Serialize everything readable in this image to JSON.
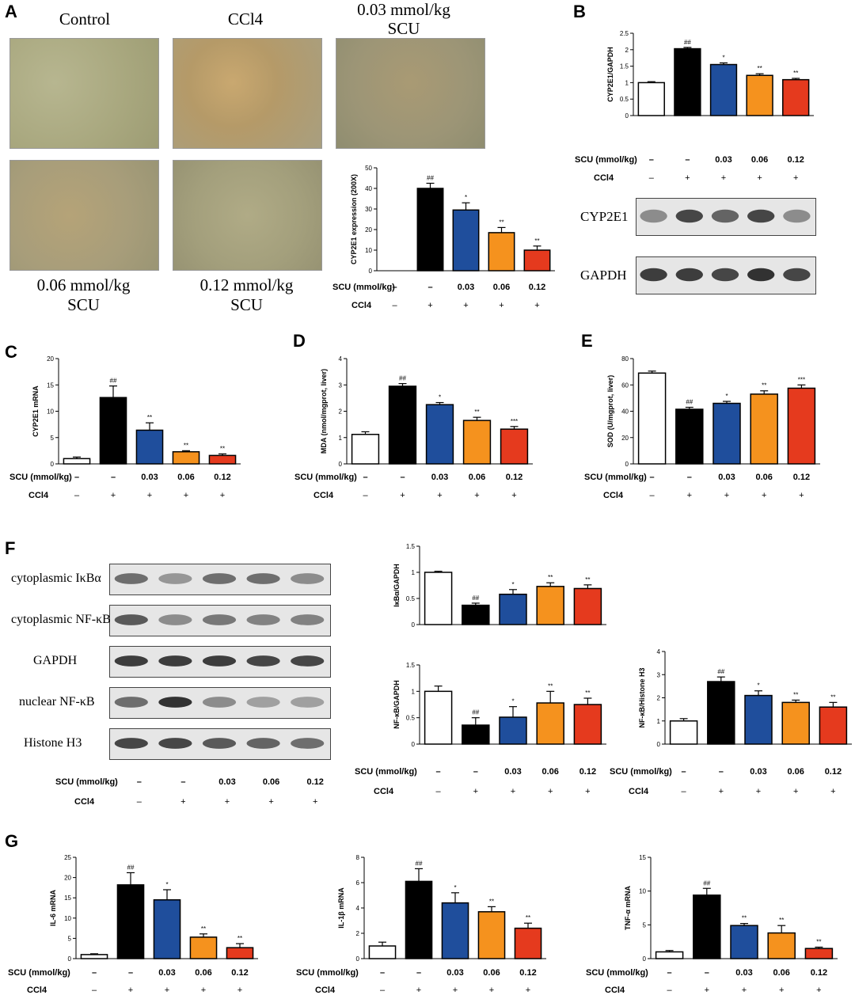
{
  "panel_labels": {
    "A": "A",
    "B": "B",
    "C": "C",
    "D": "D",
    "E": "E",
    "F": "F",
    "G": "G"
  },
  "groups": {
    "scu": [
      "–",
      "–",
      "0.03",
      "0.06",
      "0.12"
    ],
    "ccl4": [
      "–",
      "+",
      "+",
      "+",
      "+"
    ],
    "scu_label": "SCU (mmol/kg)",
    "ccl4_label": "CCl4"
  },
  "colors": {
    "control": "#ffffff",
    "model": "#000000",
    "low": "#1f4e9c",
    "mid": "#f5921e",
    "high": "#e53a1e"
  },
  "panel_a": {
    "micro_titles": [
      "Control",
      "CCl4",
      "0.03 mmol/kg",
      "SCU",
      "0.06 mmol/kg",
      "SCU",
      "0.12 mmol/kg",
      "SCU"
    ]
  },
  "panel_b": {
    "blot_labels": [
      "CYP2E1",
      "GAPDH"
    ]
  },
  "panel_f": {
    "blot_labels": [
      "cytoplasmic IκBα",
      "cytoplasmic NF-κB",
      "GAPDH",
      "nuclear NF-κB",
      "Histone H3"
    ]
  },
  "chart_data": [
    {
      "id": "a",
      "type": "bar",
      "ylabel": "CYP2E1 expression (200X)",
      "ylim": [
        0,
        50
      ],
      "ticks": [
        0,
        10,
        20,
        30,
        40,
        50
      ],
      "values": [
        0,
        40,
        29.5,
        18.5,
        10
      ],
      "errors": [
        0,
        2.5,
        3.5,
        2.5,
        2
      ],
      "marks": [
        "",
        "##",
        "*",
        "**",
        "**"
      ]
    },
    {
      "id": "b",
      "type": "bar",
      "ylabel": "CYP2E1/GAPDH",
      "ylim": [
        0,
        2.5
      ],
      "ticks": [
        0.0,
        0.5,
        1.0,
        1.5,
        2.0,
        2.5
      ],
      "values": [
        1.0,
        2.03,
        1.55,
        1.22,
        1.09
      ],
      "errors": [
        0.03,
        0.04,
        0.05,
        0.05,
        0.04
      ],
      "marks": [
        "",
        "##",
        "*",
        "**",
        "**"
      ]
    },
    {
      "id": "c",
      "type": "bar",
      "ylabel": "CYP2E1 mRNA",
      "ylim": [
        0,
        20
      ],
      "ticks": [
        0,
        5,
        10,
        15,
        20
      ],
      "values": [
        1.0,
        12.6,
        6.4,
        2.3,
        1.6
      ],
      "errors": [
        0.3,
        2.2,
        1.4,
        0.2,
        0.3
      ],
      "marks": [
        "",
        "##",
        "**",
        "**",
        "**"
      ]
    },
    {
      "id": "d",
      "type": "bar",
      "ylabel": "MDA (nmol/mgprot, liver)",
      "ylim": [
        0,
        4
      ],
      "ticks": [
        0,
        1,
        2,
        3,
        4
      ],
      "values": [
        1.12,
        2.95,
        2.25,
        1.65,
        1.32
      ],
      "errors": [
        0.1,
        0.1,
        0.08,
        0.12,
        0.1
      ],
      "marks": [
        "",
        "##",
        "*",
        "**",
        "***"
      ]
    },
    {
      "id": "e",
      "type": "bar",
      "ylabel": "SOD (U/mgprot, liver)",
      "ylim": [
        0,
        80
      ],
      "ticks": [
        0,
        20,
        40,
        60,
        80
      ],
      "values": [
        69,
        41.5,
        46,
        53,
        57.5
      ],
      "errors": [
        1.5,
        1.5,
        1.5,
        2.5,
        2.5
      ],
      "marks": [
        "",
        "##",
        "*",
        "**",
        "***"
      ]
    },
    {
      "id": "f1",
      "type": "bar",
      "ylabel": "IκBα/GAPDH",
      "ylim": [
        0,
        1.5
      ],
      "ticks": [
        0.0,
        0.5,
        1.0,
        1.5
      ],
      "values": [
        1.0,
        0.37,
        0.58,
        0.73,
        0.69
      ],
      "errors": [
        0.02,
        0.04,
        0.09,
        0.07,
        0.07
      ],
      "marks": [
        "",
        "##",
        "*",
        "**",
        "**"
      ]
    },
    {
      "id": "f2",
      "type": "bar",
      "ylabel": "NF-κB/GAPDH",
      "ylim": [
        0,
        1.5
      ],
      "ticks": [
        0.0,
        0.5,
        1.0,
        1.5
      ],
      "values": [
        1.0,
        0.36,
        0.51,
        0.78,
        0.75
      ],
      "errors": [
        0.1,
        0.14,
        0.2,
        0.22,
        0.12
      ],
      "marks": [
        "",
        "##",
        "*",
        "**",
        "**"
      ]
    },
    {
      "id": "f3",
      "type": "bar",
      "ylabel": "NF-κB/Histone H3",
      "ylim": [
        0,
        4
      ],
      "ticks": [
        0,
        1,
        2,
        3,
        4
      ],
      "values": [
        1.0,
        2.7,
        2.1,
        1.8,
        1.6
      ],
      "errors": [
        0.1,
        0.2,
        0.2,
        0.1,
        0.2
      ],
      "marks": [
        "",
        "##",
        "*",
        "**",
        "**"
      ]
    },
    {
      "id": "g1",
      "type": "bar",
      "ylabel": "IL-6 mRNA",
      "ylim": [
        0,
        25
      ],
      "ticks": [
        0,
        5,
        10,
        15,
        20,
        25
      ],
      "values": [
        1.0,
        18.2,
        14.5,
        5.3,
        2.7
      ],
      "errors": [
        0.2,
        3.0,
        2.5,
        0.8,
        1.0
      ],
      "marks": [
        "",
        "##",
        "*",
        "**",
        "**"
      ]
    },
    {
      "id": "g2",
      "type": "bar",
      "ylabel": "IL-1β mRNA",
      "ylim": [
        0,
        8
      ],
      "ticks": [
        0,
        2,
        4,
        6,
        8
      ],
      "values": [
        1.0,
        6.1,
        4.4,
        3.7,
        2.4
      ],
      "errors": [
        0.3,
        1.0,
        0.8,
        0.4,
        0.4
      ],
      "marks": [
        "",
        "##",
        "*",
        "**",
        "**"
      ]
    },
    {
      "id": "g3",
      "type": "bar",
      "ylabel": "TNF-α mRNA",
      "ylim": [
        0,
        15
      ],
      "ticks": [
        0,
        5,
        10,
        15
      ],
      "values": [
        1.0,
        9.4,
        4.9,
        3.8,
        1.5
      ],
      "errors": [
        0.2,
        1.0,
        0.3,
        1.1,
        0.2
      ],
      "marks": [
        "",
        "##",
        "**",
        "**",
        "**"
      ]
    }
  ]
}
